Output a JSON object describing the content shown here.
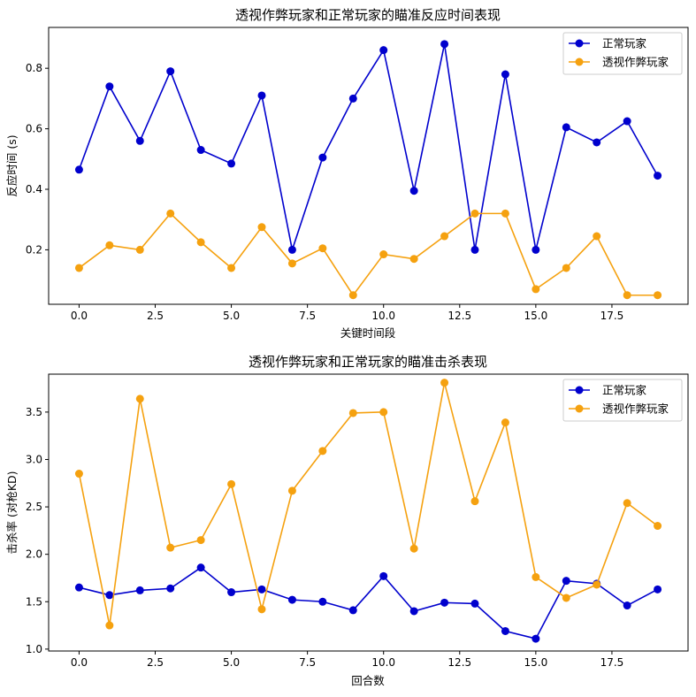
{
  "chart_data": [
    {
      "type": "line",
      "title": "透视作弊玩家和正常玩家的瞄准反应时间表现",
      "xlabel": "关键时间段",
      "ylabel": "反应时间 (s)",
      "xlim": [
        -1.0,
        20.0
      ],
      "ylim": [
        0.02,
        0.935
      ],
      "xticks": [
        0,
        2.5,
        5,
        7.5,
        10,
        12.5,
        15,
        17.5
      ],
      "xtick_labels": [
        "0.0",
        "2.5",
        "5.0",
        "7.5",
        "10.0",
        "12.5",
        "15.0",
        "17.5"
      ],
      "yticks": [
        0.2,
        0.4,
        0.6,
        0.8
      ],
      "ytick_labels": [
        "0.2",
        "0.4",
        "0.6",
        "0.8"
      ],
      "grid": false,
      "legend_position": "top-right",
      "x": [
        0,
        1,
        2,
        3,
        4,
        5,
        6,
        7,
        8,
        9,
        10,
        11,
        12,
        13,
        14,
        15,
        16,
        17,
        18,
        19
      ],
      "series": [
        {
          "name": "正常玩家",
          "color": "#0000cd",
          "values": [
            0.465,
            0.74,
            0.56,
            0.79,
            0.53,
            0.485,
            0.71,
            0.2,
            0.505,
            0.7,
            0.86,
            0.395,
            0.88,
            0.2,
            0.78,
            0.2,
            0.605,
            0.555,
            0.625,
            0.445
          ]
        },
        {
          "name": "透视作弊玩家",
          "color": "#f5a10f",
          "values": [
            0.14,
            0.215,
            0.2,
            0.32,
            0.225,
            0.14,
            0.275,
            0.155,
            0.205,
            0.05,
            0.185,
            0.17,
            0.245,
            0.32,
            0.32,
            0.07,
            0.14,
            0.245,
            0.05,
            0.05
          ]
        }
      ]
    },
    {
      "type": "line",
      "title": "透视作弊玩家和正常玩家的瞄准击杀表现",
      "xlabel": "回合数",
      "ylabel": "击杀率 (对枪KD)",
      "xlim": [
        -1.0,
        20.0
      ],
      "ylim": [
        0.98,
        3.9
      ],
      "xticks": [
        0,
        2.5,
        5,
        7.5,
        10,
        12.5,
        15,
        17.5
      ],
      "xtick_labels": [
        "0.0",
        "2.5",
        "5.0",
        "7.5",
        "10.0",
        "12.5",
        "15.0",
        "17.5"
      ],
      "yticks": [
        1.0,
        1.5,
        2.0,
        2.5,
        3.0,
        3.5
      ],
      "ytick_labels": [
        "1.0",
        "1.5",
        "2.0",
        "2.5",
        "3.0",
        "3.5"
      ],
      "grid": false,
      "legend_position": "top-right",
      "x": [
        0,
        1,
        2,
        3,
        4,
        5,
        6,
        7,
        8,
        9,
        10,
        11,
        12,
        13,
        14,
        15,
        16,
        17,
        18,
        19
      ],
      "series": [
        {
          "name": "正常玩家",
          "color": "#0000cd",
          "values": [
            1.65,
            1.57,
            1.62,
            1.64,
            1.86,
            1.6,
            1.63,
            1.52,
            1.5,
            1.41,
            1.77,
            1.4,
            1.49,
            1.48,
            1.19,
            1.11,
            1.72,
            1.69,
            1.46,
            1.63
          ]
        },
        {
          "name": "透视作弊玩家",
          "color": "#f5a10f",
          "values": [
            2.85,
            1.25,
            3.64,
            2.07,
            2.15,
            2.74,
            1.42,
            2.67,
            3.09,
            3.49,
            3.5,
            2.06,
            3.81,
            2.56,
            3.39,
            1.76,
            1.54,
            1.68,
            2.54,
            2.3
          ]
        }
      ]
    }
  ]
}
